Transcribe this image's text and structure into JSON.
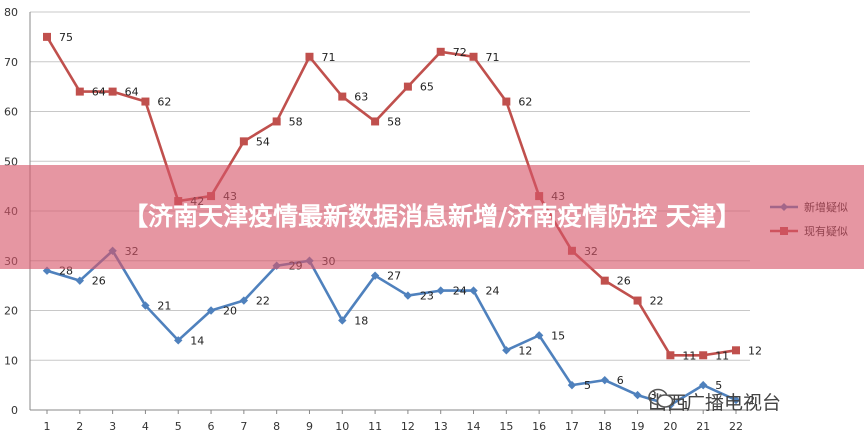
{
  "page_title": "【济南天津疫情最新数据消息新增/济南疫情防控 天津】",
  "watermark": {
    "text": "山西广播电视台",
    "icon": "wechat-icon"
  },
  "chart_data": {
    "type": "line",
    "categories": [
      "1",
      "2",
      "3",
      "4",
      "5",
      "6",
      "7",
      "8",
      "9",
      "10",
      "11",
      "12",
      "13",
      "14",
      "15",
      "16",
      "17",
      "18",
      "19",
      "20",
      "21",
      "22"
    ],
    "series": [
      {
        "name": "新增疑似",
        "color": "#4f81bd",
        "marker": "diamond",
        "values": [
          28,
          26,
          32,
          21,
          14,
          20,
          22,
          29,
          30,
          18,
          27,
          23,
          24,
          24,
          12,
          15,
          5,
          6,
          3,
          1,
          5,
          2
        ]
      },
      {
        "name": "现有疑似",
        "color": "#c0504d",
        "marker": "square",
        "values": [
          75,
          64,
          64,
          62,
          42,
          43,
          54,
          58,
          71,
          63,
          58,
          65,
          72,
          71,
          62,
          43,
          32,
          26,
          22,
          11,
          11,
          12
        ]
      }
    ],
    "ylim": [
      0,
      80
    ],
    "yticks": [
      0,
      10,
      20,
      30,
      40,
      50,
      60,
      70,
      80
    ],
    "grid": true,
    "legend_position": "right",
    "title": "",
    "xlabel": "",
    "ylabel": ""
  }
}
